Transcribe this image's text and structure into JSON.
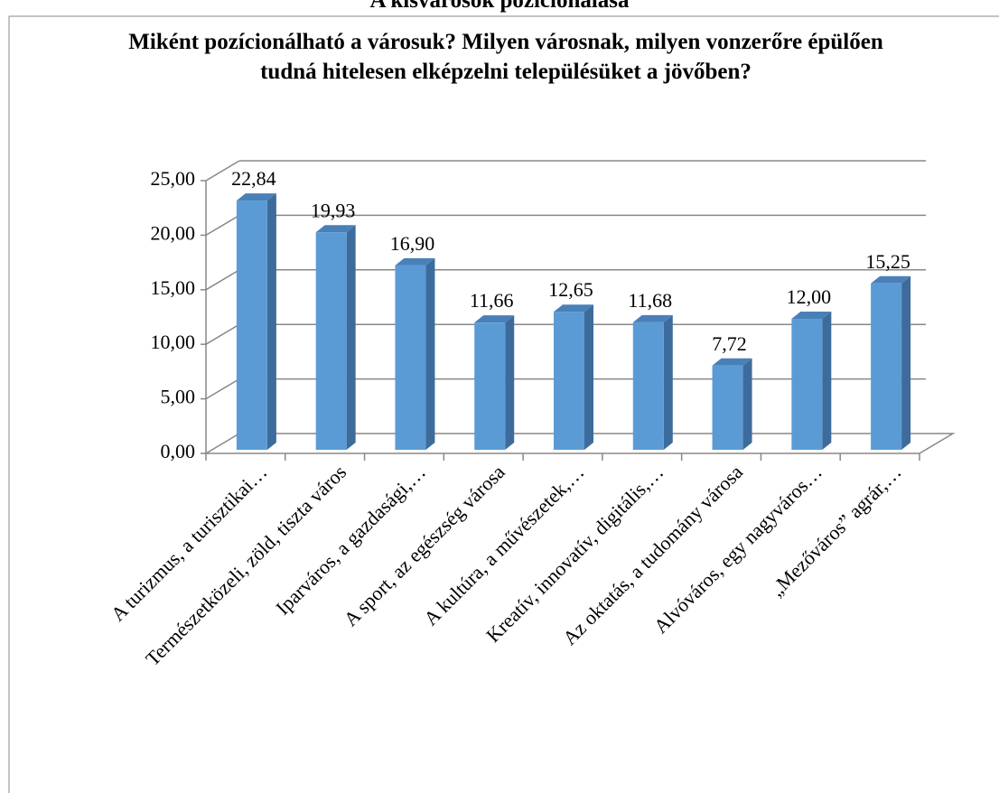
{
  "chart_data": {
    "type": "bar",
    "header": "A kisvárosok pozícionálása",
    "title": "Miként pozícionálható a városuk? Milyen városnak, milyen vonzerőre épülően tudná hitelesen elképzelni településüket a jövőben?",
    "categories": [
      "A turizmus, a turisztikai…",
      "Természetközeli, zöld, tiszta város",
      "Iparváros, a gazdasági,…",
      "A sport, az egészség városa",
      "A kultúra, a művészetek,…",
      "Kreatív, innovatív, digitális,…",
      "Az oktatás, a tudomány városa",
      "Alvóváros, egy nagyváros…",
      "„Mezőváros” agrár,…"
    ],
    "values": [
      22.84,
      19.93,
      16.9,
      11.66,
      12.65,
      11.68,
      7.72,
      12.0,
      15.25
    ],
    "value_labels": [
      "22,84",
      "19,93",
      "16,90",
      "11,66",
      "12,65",
      "11,68",
      "7,72",
      "12,00",
      "15,25"
    ],
    "color": "#5b9bd5",
    "ylim": [
      0,
      25
    ],
    "yticks": [
      {
        "value": 0,
        "label": "0,00"
      },
      {
        "value": 5,
        "label": "5,00"
      },
      {
        "value": 10,
        "label": "10,00"
      },
      {
        "value": 15,
        "label": "15,00"
      },
      {
        "value": 20,
        "label": "20,00"
      },
      {
        "value": 25,
        "label": "25,00"
      }
    ],
    "grid": true
  }
}
